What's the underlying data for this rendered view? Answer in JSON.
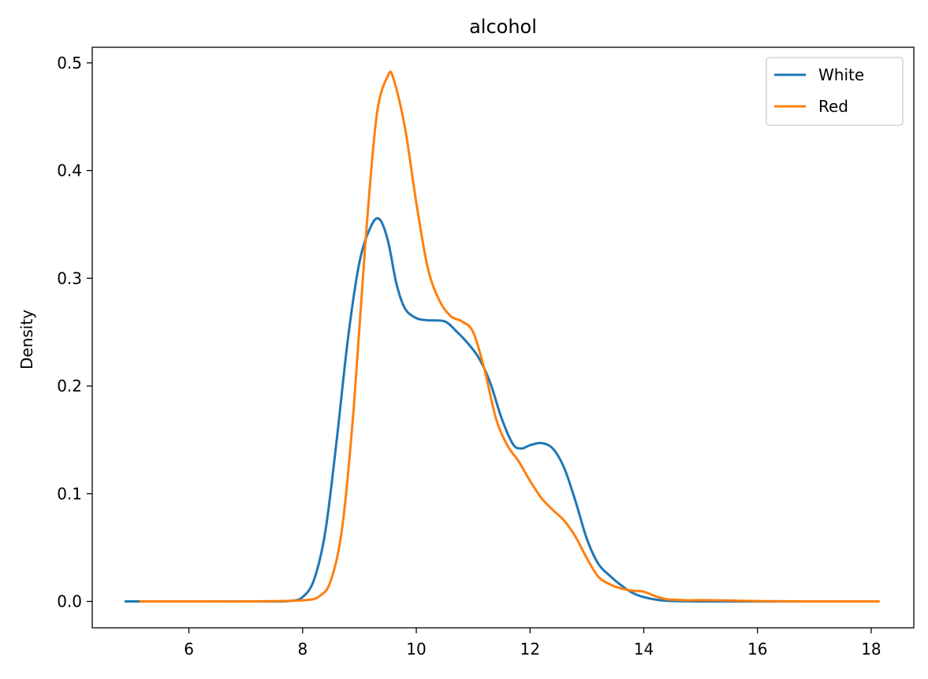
{
  "chart_data": {
    "type": "line",
    "title": "alcohol",
    "xlabel": "",
    "ylabel": "Density",
    "xlim": [
      4.3,
      18.75
    ],
    "ylim": [
      -0.0245,
      0.5145
    ],
    "xticks": [
      6,
      8,
      10,
      12,
      14,
      16,
      18
    ],
    "yticks": [
      0.0,
      0.1,
      0.2,
      0.3,
      0.4,
      0.5
    ],
    "xtick_labels": [
      "6",
      "8",
      "10",
      "12",
      "14",
      "16",
      "18"
    ],
    "ytick_labels": [
      "0.0",
      "0.1",
      "0.2",
      "0.3",
      "0.4",
      "0.5"
    ],
    "grid": false,
    "legend_position": "top-right",
    "series": [
      {
        "name": "White",
        "color": "#1f77b4",
        "points": [
          [
            4.87,
            0.0
          ],
          [
            5.5,
            0.0
          ],
          [
            6.0,
            0.0
          ],
          [
            7.0,
            0.0
          ],
          [
            7.5,
            0.0
          ],
          [
            7.8,
            0.0005
          ],
          [
            8.0,
            0.004
          ],
          [
            8.2,
            0.02
          ],
          [
            8.4,
            0.065
          ],
          [
            8.6,
            0.15
          ],
          [
            8.8,
            0.245
          ],
          [
            9.0,
            0.315
          ],
          [
            9.2,
            0.348
          ],
          [
            9.35,
            0.355
          ],
          [
            9.5,
            0.335
          ],
          [
            9.65,
            0.295
          ],
          [
            9.8,
            0.272
          ],
          [
            10.0,
            0.263
          ],
          [
            10.2,
            0.261
          ],
          [
            10.5,
            0.26
          ],
          [
            10.7,
            0.251
          ],
          [
            10.9,
            0.24
          ],
          [
            11.1,
            0.226
          ],
          [
            11.3,
            0.203
          ],
          [
            11.5,
            0.17
          ],
          [
            11.7,
            0.146
          ],
          [
            11.85,
            0.142
          ],
          [
            12.0,
            0.145
          ],
          [
            12.2,
            0.147
          ],
          [
            12.4,
            0.142
          ],
          [
            12.6,
            0.124
          ],
          [
            12.8,
            0.093
          ],
          [
            13.0,
            0.058
          ],
          [
            13.2,
            0.035
          ],
          [
            13.4,
            0.024
          ],
          [
            13.6,
            0.015
          ],
          [
            13.8,
            0.008
          ],
          [
            14.0,
            0.004
          ],
          [
            14.3,
            0.001
          ],
          [
            14.6,
            0.0003
          ],
          [
            15.0,
            0.0
          ],
          [
            16.0,
            0.0
          ],
          [
            17.3,
            0.0
          ]
        ]
      },
      {
        "name": "Red",
        "color": "#ff7f0e",
        "points": [
          [
            5.13,
            0.0
          ],
          [
            6.0,
            0.0
          ],
          [
            7.0,
            0.0
          ],
          [
            8.0,
            0.001
          ],
          [
            8.3,
            0.005
          ],
          [
            8.5,
            0.02
          ],
          [
            8.7,
            0.07
          ],
          [
            8.9,
            0.18
          ],
          [
            9.1,
            0.33
          ],
          [
            9.3,
            0.45
          ],
          [
            9.5,
            0.488
          ],
          [
            9.6,
            0.485
          ],
          [
            9.8,
            0.44
          ],
          [
            10.0,
            0.37
          ],
          [
            10.2,
            0.31
          ],
          [
            10.4,
            0.28
          ],
          [
            10.6,
            0.265
          ],
          [
            10.8,
            0.26
          ],
          [
            11.0,
            0.25
          ],
          [
            11.2,
            0.215
          ],
          [
            11.4,
            0.17
          ],
          [
            11.6,
            0.145
          ],
          [
            11.8,
            0.13
          ],
          [
            12.0,
            0.112
          ],
          [
            12.2,
            0.096
          ],
          [
            12.4,
            0.085
          ],
          [
            12.6,
            0.075
          ],
          [
            12.8,
            0.06
          ],
          [
            13.0,
            0.04
          ],
          [
            13.2,
            0.023
          ],
          [
            13.4,
            0.016
          ],
          [
            13.6,
            0.012
          ],
          [
            13.8,
            0.01
          ],
          [
            14.0,
            0.009
          ],
          [
            14.2,
            0.005
          ],
          [
            14.4,
            0.002
          ],
          [
            14.6,
            0.0015
          ],
          [
            14.8,
            0.001
          ],
          [
            15.0,
            0.0012
          ],
          [
            15.5,
            0.0008
          ],
          [
            16.0,
            0.0003
          ],
          [
            17.0,
            0.0
          ],
          [
            18.15,
            0.0
          ]
        ]
      }
    ]
  }
}
